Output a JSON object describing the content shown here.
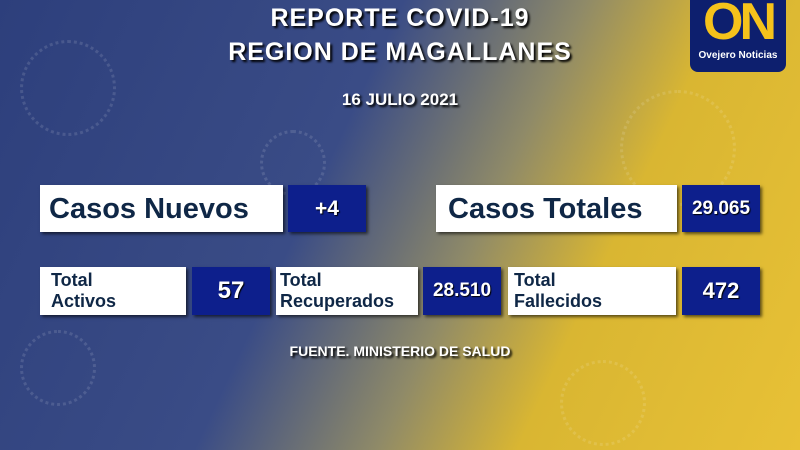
{
  "header": {
    "title_line1": "REPORTE COVID-19",
    "title_line2": "REGION DE MAGALLANES",
    "date": "16 JULIO 2021"
  },
  "logo": {
    "letters": "ON",
    "name": "Ovejero Noticias"
  },
  "stats": {
    "new_cases": {
      "label": "Casos Nuevos",
      "value": "+4"
    },
    "total_cases": {
      "label": "Casos Totales",
      "value": "29.065"
    },
    "active": {
      "label_line1": "Total",
      "label_line2": "Activos",
      "value": "57"
    },
    "recovered": {
      "label_line1": "Total",
      "label_line2": "Recuperados",
      "value": "28.510"
    },
    "deceased": {
      "label_line1": "Total",
      "label_line2": "Fallecidos",
      "value": "472"
    }
  },
  "footer": {
    "source": "FUENTE. MINISTERIO DE SALUD"
  },
  "colors": {
    "value_box": "#0d1f8c",
    "label_text": "#0f2746",
    "logo_yellow": "#f5c21b"
  }
}
